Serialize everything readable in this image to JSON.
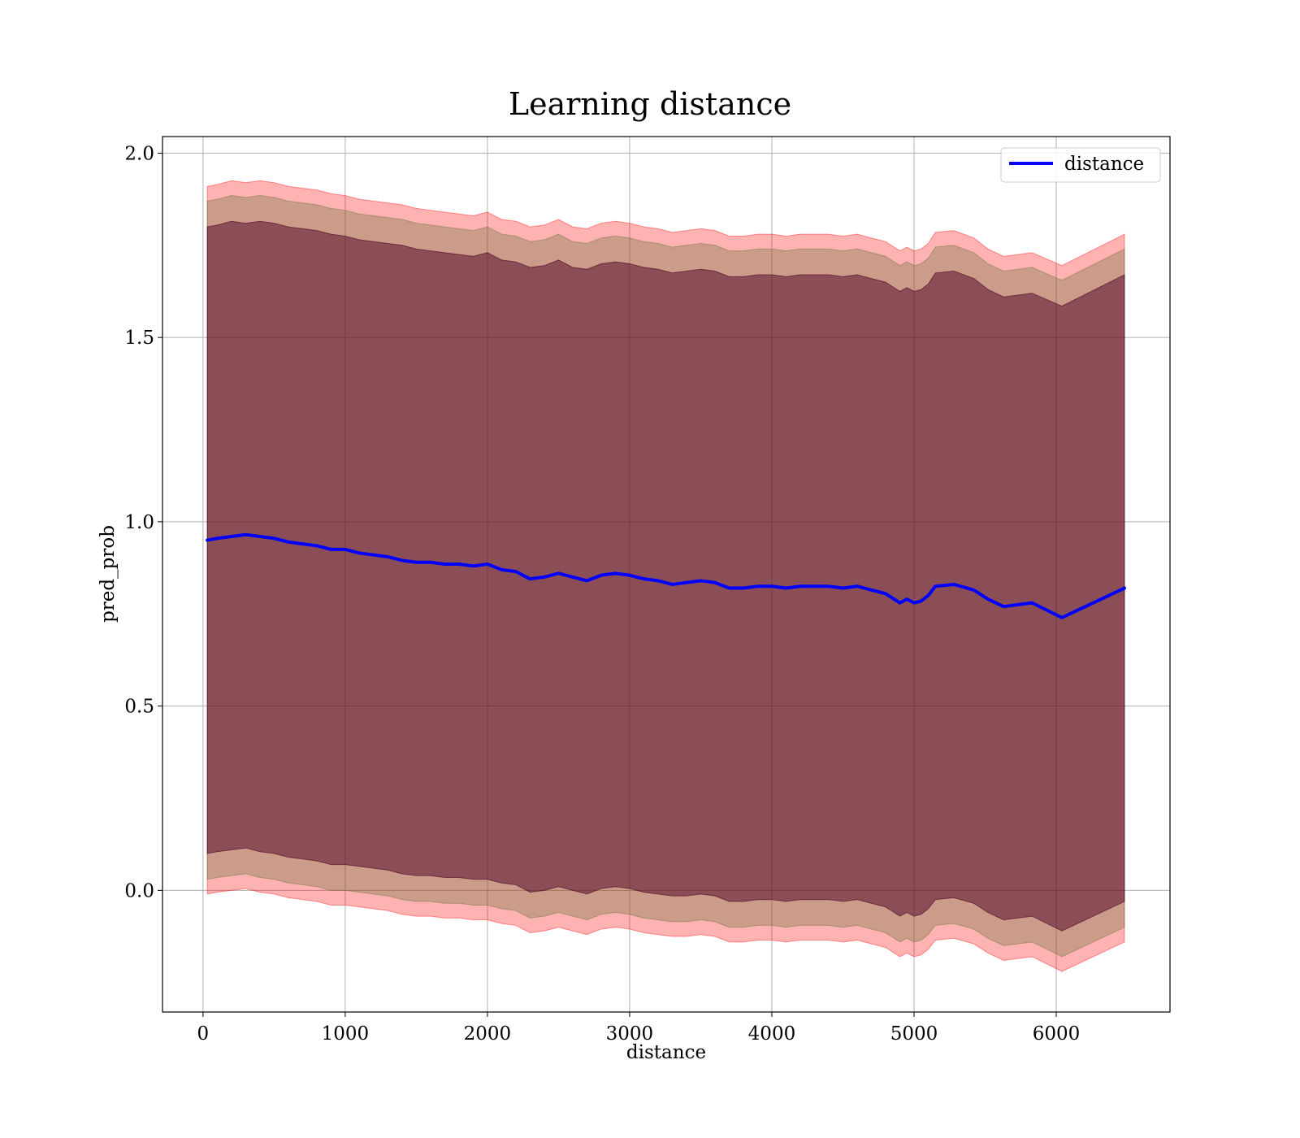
{
  "chart_data": {
    "type": "line",
    "title": "Learning distance",
    "xlabel": "distance",
    "ylabel": "pred_prob",
    "xlim": [
      -285,
      6800
    ],
    "ylim": [
      -0.33,
      2.045
    ],
    "xticks": [
      0,
      1000,
      2000,
      3000,
      4000,
      5000,
      6000
    ],
    "xtick_labels": [
      "0",
      "1000",
      "2000",
      "3000",
      "4000",
      "5000",
      "6000"
    ],
    "yticks": [
      0.0,
      0.5,
      1.0,
      1.5,
      2.0
    ],
    "ytick_labels": [
      "0.0",
      "0.5",
      "1.0",
      "1.5",
      "2.0"
    ],
    "grid": true,
    "legend_position": "top-right",
    "series": [
      {
        "name": "distance",
        "color": "#0000ff",
        "x": [
          30,
          100,
          200,
          300,
          400,
          500,
          600,
          700,
          800,
          900,
          1000,
          1100,
          1200,
          1300,
          1400,
          1500,
          1600,
          1700,
          1800,
          1900,
          2000,
          2100,
          2200,
          2300,
          2400,
          2500,
          2600,
          2700,
          2800,
          2900,
          3000,
          3100,
          3200,
          3300,
          3400,
          3500,
          3600,
          3700,
          3800,
          3900,
          4000,
          4100,
          4200,
          4300,
          4400,
          4500,
          4600,
          4700,
          4800,
          4900,
          4950,
          5000,
          5050,
          5100,
          5150,
          5280,
          5420,
          5520,
          5630,
          5830,
          6040,
          6480
        ],
        "values": [
          0.95,
          0.955,
          0.96,
          0.965,
          0.96,
          0.955,
          0.945,
          0.94,
          0.935,
          0.925,
          0.925,
          0.915,
          0.91,
          0.905,
          0.895,
          0.89,
          0.89,
          0.885,
          0.885,
          0.88,
          0.885,
          0.87,
          0.865,
          0.845,
          0.85,
          0.86,
          0.85,
          0.84,
          0.855,
          0.86,
          0.855,
          0.845,
          0.84,
          0.83,
          0.835,
          0.84,
          0.835,
          0.82,
          0.82,
          0.825,
          0.825,
          0.82,
          0.825,
          0.825,
          0.825,
          0.82,
          0.825,
          0.815,
          0.805,
          0.78,
          0.79,
          0.78,
          0.785,
          0.8,
          0.825,
          0.83,
          0.815,
          0.79,
          0.77,
          0.78,
          0.74,
          0.82
        ]
      }
    ],
    "bands": [
      {
        "color": "#ff0000",
        "opacity": 0.3,
        "x": [
          30,
          100,
          200,
          300,
          400,
          500,
          600,
          700,
          800,
          900,
          1000,
          1100,
          1200,
          1300,
          1400,
          1500,
          1600,
          1700,
          1800,
          1900,
          2000,
          2100,
          2200,
          2300,
          2400,
          2500,
          2600,
          2700,
          2800,
          2900,
          3000,
          3100,
          3200,
          3300,
          3400,
          3500,
          3600,
          3700,
          3800,
          3900,
          4000,
          4100,
          4200,
          4300,
          4400,
          4500,
          4600,
          4700,
          4800,
          4900,
          4950,
          5000,
          5050,
          5100,
          5150,
          5280,
          5420,
          5520,
          5630,
          5830,
          6040,
          6480
        ],
        "upper": [
          1.91,
          1.915,
          1.925,
          1.92,
          1.925,
          1.92,
          1.91,
          1.905,
          1.9,
          1.89,
          1.885,
          1.875,
          1.87,
          1.865,
          1.86,
          1.85,
          1.845,
          1.84,
          1.835,
          1.83,
          1.84,
          1.82,
          1.815,
          1.8,
          1.805,
          1.82,
          1.8,
          1.795,
          1.81,
          1.815,
          1.81,
          1.8,
          1.795,
          1.785,
          1.79,
          1.795,
          1.79,
          1.775,
          1.775,
          1.78,
          1.78,
          1.775,
          1.78,
          1.78,
          1.78,
          1.775,
          1.78,
          1.77,
          1.76,
          1.735,
          1.745,
          1.735,
          1.74,
          1.755,
          1.785,
          1.79,
          1.77,
          1.74,
          1.72,
          1.73,
          1.695,
          1.78
        ],
        "lower": [
          -0.01,
          -0.005,
          0.0,
          0.005,
          -0.005,
          -0.01,
          -0.02,
          -0.025,
          -0.03,
          -0.04,
          -0.04,
          -0.045,
          -0.05,
          -0.055,
          -0.065,
          -0.07,
          -0.07,
          -0.075,
          -0.075,
          -0.08,
          -0.08,
          -0.09,
          -0.095,
          -0.115,
          -0.11,
          -0.1,
          -0.11,
          -0.12,
          -0.105,
          -0.1,
          -0.105,
          -0.115,
          -0.12,
          -0.125,
          -0.125,
          -0.12,
          -0.125,
          -0.14,
          -0.14,
          -0.135,
          -0.135,
          -0.14,
          -0.135,
          -0.135,
          -0.135,
          -0.14,
          -0.135,
          -0.145,
          -0.155,
          -0.18,
          -0.17,
          -0.18,
          -0.175,
          -0.16,
          -0.135,
          -0.13,
          -0.145,
          -0.17,
          -0.19,
          -0.18,
          -0.22,
          -0.14
        ]
      },
      {
        "color": "#556b2f",
        "opacity": 0.3,
        "x": [
          30,
          100,
          200,
          300,
          400,
          500,
          600,
          700,
          800,
          900,
          1000,
          1100,
          1200,
          1300,
          1400,
          1500,
          1600,
          1700,
          1800,
          1900,
          2000,
          2100,
          2200,
          2300,
          2400,
          2500,
          2600,
          2700,
          2800,
          2900,
          3000,
          3100,
          3200,
          3300,
          3400,
          3500,
          3600,
          3700,
          3800,
          3900,
          4000,
          4100,
          4200,
          4300,
          4400,
          4500,
          4600,
          4700,
          4800,
          4900,
          4950,
          5000,
          5050,
          5100,
          5150,
          5280,
          5420,
          5520,
          5630,
          5830,
          6040,
          6480
        ],
        "upper": [
          1.87,
          1.875,
          1.885,
          1.88,
          1.885,
          1.88,
          1.87,
          1.865,
          1.86,
          1.85,
          1.845,
          1.835,
          1.83,
          1.825,
          1.82,
          1.81,
          1.805,
          1.8,
          1.795,
          1.79,
          1.8,
          1.78,
          1.775,
          1.76,
          1.765,
          1.78,
          1.76,
          1.755,
          1.77,
          1.775,
          1.77,
          1.76,
          1.755,
          1.745,
          1.75,
          1.755,
          1.75,
          1.735,
          1.735,
          1.74,
          1.74,
          1.735,
          1.74,
          1.74,
          1.74,
          1.735,
          1.74,
          1.73,
          1.72,
          1.695,
          1.705,
          1.695,
          1.7,
          1.715,
          1.745,
          1.75,
          1.73,
          1.7,
          1.68,
          1.69,
          1.655,
          1.74
        ],
        "lower": [
          0.03,
          0.035,
          0.04,
          0.045,
          0.035,
          0.03,
          0.02,
          0.015,
          0.01,
          0.0,
          0.0,
          -0.005,
          -0.01,
          -0.015,
          -0.025,
          -0.03,
          -0.03,
          -0.035,
          -0.035,
          -0.04,
          -0.04,
          -0.05,
          -0.055,
          -0.075,
          -0.07,
          -0.06,
          -0.07,
          -0.08,
          -0.065,
          -0.06,
          -0.065,
          -0.075,
          -0.08,
          -0.085,
          -0.085,
          -0.08,
          -0.085,
          -0.1,
          -0.1,
          -0.095,
          -0.095,
          -0.1,
          -0.095,
          -0.095,
          -0.095,
          -0.1,
          -0.095,
          -0.105,
          -0.115,
          -0.14,
          -0.13,
          -0.14,
          -0.135,
          -0.12,
          -0.095,
          -0.09,
          -0.105,
          -0.13,
          -0.15,
          -0.14,
          -0.18,
          -0.1
        ]
      },
      {
        "color": "#4b0021",
        "opacity": 0.5,
        "x": [
          30,
          100,
          200,
          300,
          400,
          500,
          600,
          700,
          800,
          900,
          1000,
          1100,
          1200,
          1300,
          1400,
          1500,
          1600,
          1700,
          1800,
          1900,
          2000,
          2100,
          2200,
          2300,
          2400,
          2500,
          2600,
          2700,
          2800,
          2900,
          3000,
          3100,
          3200,
          3300,
          3400,
          3500,
          3600,
          3700,
          3800,
          3900,
          4000,
          4100,
          4200,
          4300,
          4400,
          4500,
          4600,
          4700,
          4800,
          4900,
          4950,
          5000,
          5050,
          5100,
          5150,
          5280,
          5420,
          5520,
          5630,
          5830,
          6040,
          6480
        ],
        "upper": [
          1.8,
          1.805,
          1.815,
          1.81,
          1.815,
          1.81,
          1.8,
          1.795,
          1.79,
          1.78,
          1.775,
          1.765,
          1.76,
          1.755,
          1.75,
          1.74,
          1.735,
          1.73,
          1.725,
          1.72,
          1.73,
          1.71,
          1.705,
          1.69,
          1.695,
          1.71,
          1.69,
          1.685,
          1.7,
          1.705,
          1.7,
          1.69,
          1.685,
          1.675,
          1.68,
          1.685,
          1.68,
          1.665,
          1.665,
          1.67,
          1.67,
          1.665,
          1.67,
          1.67,
          1.67,
          1.665,
          1.67,
          1.66,
          1.65,
          1.625,
          1.635,
          1.625,
          1.63,
          1.645,
          1.675,
          1.68,
          1.66,
          1.63,
          1.61,
          1.62,
          1.585,
          1.67
        ],
        "lower": [
          0.1,
          0.105,
          0.11,
          0.115,
          0.105,
          0.1,
          0.09,
          0.085,
          0.08,
          0.07,
          0.07,
          0.065,
          0.06,
          0.055,
          0.045,
          0.04,
          0.04,
          0.035,
          0.035,
          0.03,
          0.03,
          0.02,
          0.015,
          -0.005,
          0.0,
          0.01,
          0.0,
          -0.01,
          0.005,
          0.01,
          0.005,
          -0.005,
          -0.01,
          -0.015,
          -0.015,
          -0.01,
          -0.015,
          -0.03,
          -0.03,
          -0.025,
          -0.025,
          -0.03,
          -0.025,
          -0.025,
          -0.025,
          -0.03,
          -0.025,
          -0.035,
          -0.045,
          -0.07,
          -0.06,
          -0.07,
          -0.065,
          -0.05,
          -0.025,
          -0.02,
          -0.035,
          -0.06,
          -0.08,
          -0.07,
          -0.11,
          -0.03
        ]
      }
    ]
  }
}
